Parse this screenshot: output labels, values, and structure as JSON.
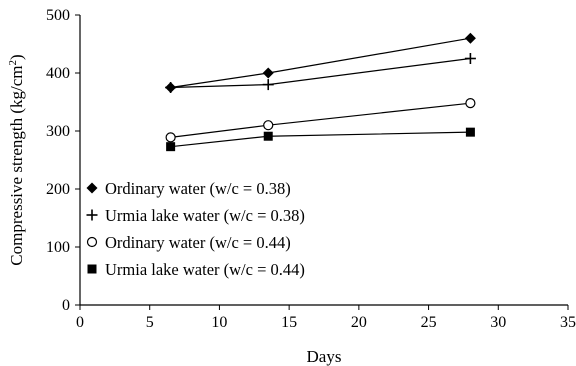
{
  "chart_data": {
    "type": "line",
    "xlabel": "Days",
    "ylabel_main": "Compressive strength (kg/cm",
    "ylabel_sup": "2",
    "ylabel_tail": ")",
    "xlim": [
      0,
      35
    ],
    "ylim": [
      0,
      500
    ],
    "x_ticks": [
      0,
      5,
      10,
      15,
      20,
      25,
      30,
      35
    ],
    "y_ticks": [
      0,
      100,
      200,
      300,
      400,
      500
    ],
    "grid": false,
    "legend_position": "lower-left",
    "series": [
      {
        "name": "Ordinary water (w/c = 0.38)",
        "marker": "diamond",
        "x": [
          6.5,
          13.5,
          28
        ],
        "y": [
          375,
          400,
          460
        ]
      },
      {
        "name": "Urmia lake water (w/c = 0.38)",
        "marker": "plus",
        "x": [
          6.5,
          13.5,
          28
        ],
        "y": [
          375,
          380,
          425
        ]
      },
      {
        "name": "Ordinary water (w/c = 0.44)",
        "marker": "circle",
        "x": [
          6.5,
          13.5,
          28
        ],
        "y": [
          289,
          310,
          348
        ]
      },
      {
        "name": "Urmia lake water (w/c = 0.44)",
        "marker": "square",
        "x": [
          6.5,
          13.5,
          28
        ],
        "y": [
          273,
          291,
          298
        ]
      }
    ]
  }
}
